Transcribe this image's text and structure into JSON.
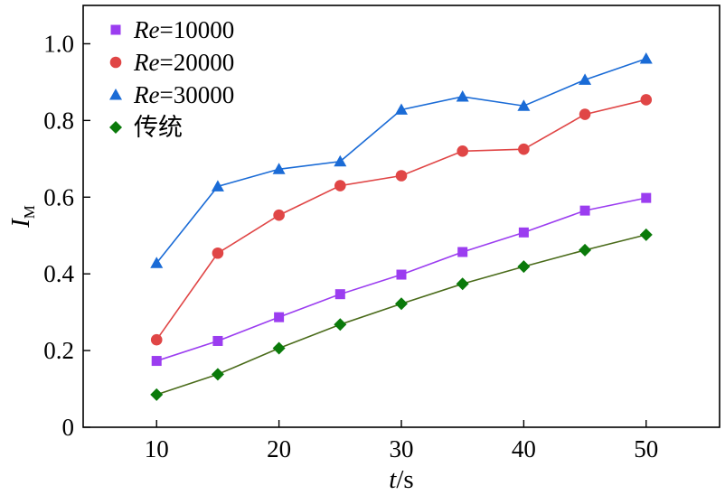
{
  "chart_data": {
    "type": "line",
    "x": [
      10,
      15,
      20,
      25,
      30,
      35,
      40,
      45,
      50
    ],
    "xlim": [
      4,
      56
    ],
    "ylim": [
      0,
      1.1
    ],
    "xticks": [
      10,
      20,
      30,
      40,
      50
    ],
    "yticks": [
      0,
      0.2,
      0.4,
      0.6,
      0.8,
      1.0
    ],
    "xtick_labels": [
      "10",
      "20",
      "30",
      "40",
      "50"
    ],
    "ytick_labels": [
      "0",
      "0.2",
      "0.4",
      "0.6",
      "0.8",
      "1.0"
    ],
    "xlabel": {
      "var": "t",
      "unit": "/s"
    },
    "ylabel": {
      "var": "I",
      "sub": "M"
    },
    "legend_position": "top-left",
    "series": [
      {
        "name": "Re=10000",
        "legend_italic": "Re",
        "legend_rest": "=10000",
        "color": "#9b3df0",
        "marker": "square",
        "values": [
          0.173,
          0.225,
          0.287,
          0.347,
          0.398,
          0.457,
          0.508,
          0.565,
          0.598
        ]
      },
      {
        "name": "Re=20000",
        "legend_italic": "Re",
        "legend_rest": "=20000",
        "color": "#e04646",
        "marker": "circle",
        "values": [
          0.228,
          0.454,
          0.553,
          0.63,
          0.656,
          0.72,
          0.725,
          0.816,
          0.854
        ]
      },
      {
        "name": "Re=30000",
        "legend_italic": "Re",
        "legend_rest": "=30000",
        "color": "#1a6bd6",
        "marker": "triangle",
        "values": [
          0.428,
          0.628,
          0.673,
          0.693,
          0.828,
          0.862,
          0.838,
          0.906,
          0.961
        ]
      },
      {
        "name": "传统",
        "legend_italic": "",
        "legend_rest": "传统",
        "color": "#0a7a0a",
        "line_color": "#4a6b1a",
        "marker": "diamond",
        "values": [
          0.085,
          0.138,
          0.206,
          0.268,
          0.322,
          0.374,
          0.419,
          0.462,
          0.502
        ]
      }
    ]
  }
}
